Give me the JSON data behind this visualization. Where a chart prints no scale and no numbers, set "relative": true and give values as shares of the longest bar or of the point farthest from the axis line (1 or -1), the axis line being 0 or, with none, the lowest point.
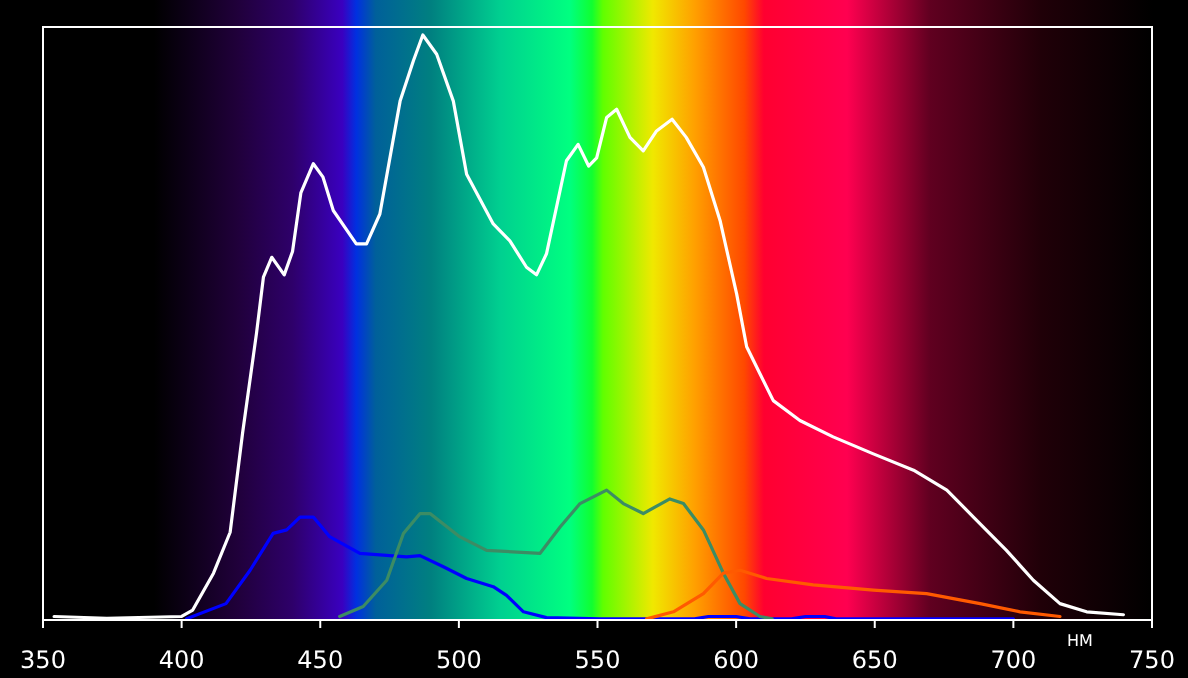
{
  "chart_data": {
    "type": "line",
    "relative": true,
    "xlabel": "НМ",
    "xlim": [
      350,
      750
    ],
    "xticks": [
      350,
      400,
      450,
      500,
      550,
      600,
      650,
      700,
      750
    ],
    "marker": "none",
    "line_style": "solid",
    "series": [
      {
        "color": "#ffffff",
        "x": [
          354,
          373,
          400,
          404,
          411.5,
          417.5,
          422,
          427,
          429.5,
          432.5,
          437,
          440,
          443,
          447.5,
          451,
          454.7,
          463,
          466.7,
          471.5,
          478.8,
          483.6,
          487,
          492,
          498,
          502.8,
          512.4,
          518.4,
          524.4,
          528,
          531.6,
          538.8,
          543,
          546.8,
          549.7,
          553.3,
          556.9,
          561.7,
          566.5,
          571.3,
          576.9,
          582,
          588.2,
          594.2,
          600.2,
          603.8,
          608.6,
          613.4,
          623,
          635,
          649.5,
          664,
          676,
          685.6,
          697.5,
          707.2,
          716.8,
          726.4,
          739.7
        ],
        "values": [
          0.006,
          0.003,
          0.006,
          0.017,
          0.08,
          0.15,
          0.32,
          0.49,
          0.586,
          0.62,
          0.59,
          0.63,
          0.73,
          0.78,
          0.757,
          0.7,
          0.643,
          0.643,
          0.694,
          0.887,
          0.956,
          1,
          0.967,
          0.887,
          0.762,
          0.677,
          0.648,
          0.603,
          0.59,
          0.626,
          0.785,
          0.813,
          0.776,
          0.79,
          0.859,
          0.873,
          0.825,
          0.802,
          0.836,
          0.856,
          0.825,
          0.774,
          0.683,
          0.557,
          0.467,
          0.421,
          0.375,
          0.341,
          0.313,
          0.284,
          0.256,
          0.222,
          0.176,
          0.119,
          0.068,
          0.028,
          0.014,
          0.009
        ]
      },
      {
        "color": "#0000ff",
        "x": [
          401.8,
          416,
          424.7,
          433,
          437.9,
          442.7,
          447.5,
          453.5,
          464.3,
          481.1,
          486,
          494.4,
          502.8,
          512.4,
          517.2,
          523.3,
          531.6,
          551,
          585,
          590,
          600,
          605,
          620,
          625,
          632,
          636,
          700
        ],
        "values": [
          0.002,
          0.028,
          0.085,
          0.148,
          0.154,
          0.176,
          0.176,
          0.142,
          0.114,
          0.108,
          0.11,
          0.091,
          0.071,
          0.057,
          0.042,
          0.014,
          0.004,
          0.002,
          0.002,
          0.006,
          0.006,
          0.002,
          0.002,
          0.006,
          0.006,
          0.002,
          0.002
        ]
      },
      {
        "color": "#3c8c64",
        "x": [
          457,
          465.5,
          474,
          480,
          486,
          489.6,
          500.4,
          510,
          529.3,
          536.5,
          543.7,
          553.3,
          559.3,
          566.5,
          576.1,
          581,
          588.2,
          595.4,
          601.4,
          608.6,
          613
        ],
        "values": [
          0.006,
          0.023,
          0.068,
          0.148,
          0.182,
          0.182,
          0.142,
          0.119,
          0.114,
          0.159,
          0.199,
          0.222,
          0.199,
          0.182,
          0.207,
          0.199,
          0.154,
          0.08,
          0.028,
          0.006,
          0.002
        ]
      },
      {
        "color": "#ff5a00",
        "x": [
          567.7,
          577.4,
          588.2,
          595.4,
          601.4,
          611,
          627.8,
          649.5,
          668.7,
          688,
          702.4,
          716.8
        ],
        "values": [
          0.002,
          0.014,
          0.045,
          0.08,
          0.085,
          0.071,
          0.06,
          0.051,
          0.045,
          0.028,
          0.014,
          0.006
        ]
      }
    ]
  }
}
